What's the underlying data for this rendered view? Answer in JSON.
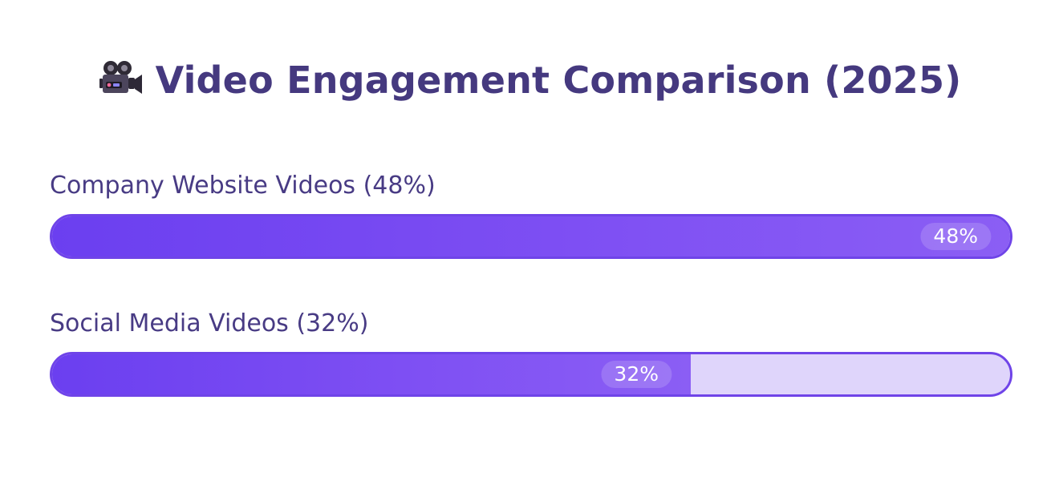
{
  "chart_data": {
    "type": "bar",
    "orientation": "horizontal",
    "title": "Video Engagement Comparison (2025)",
    "title_icon": "movie-camera-icon",
    "categories": [
      "Company Website Videos (48%)",
      "Social Media Videos (32%)"
    ],
    "values": [
      48,
      32
    ],
    "value_labels": [
      "48%",
      "32%"
    ],
    "value_max": 48,
    "colors": {
      "title": "#45397f",
      "label": "#483b84",
      "fill_start": "#6b3ff0",
      "fill_end": "#8b5ef4",
      "track": "#dfd5fb",
      "border": "#6f44e8"
    }
  }
}
